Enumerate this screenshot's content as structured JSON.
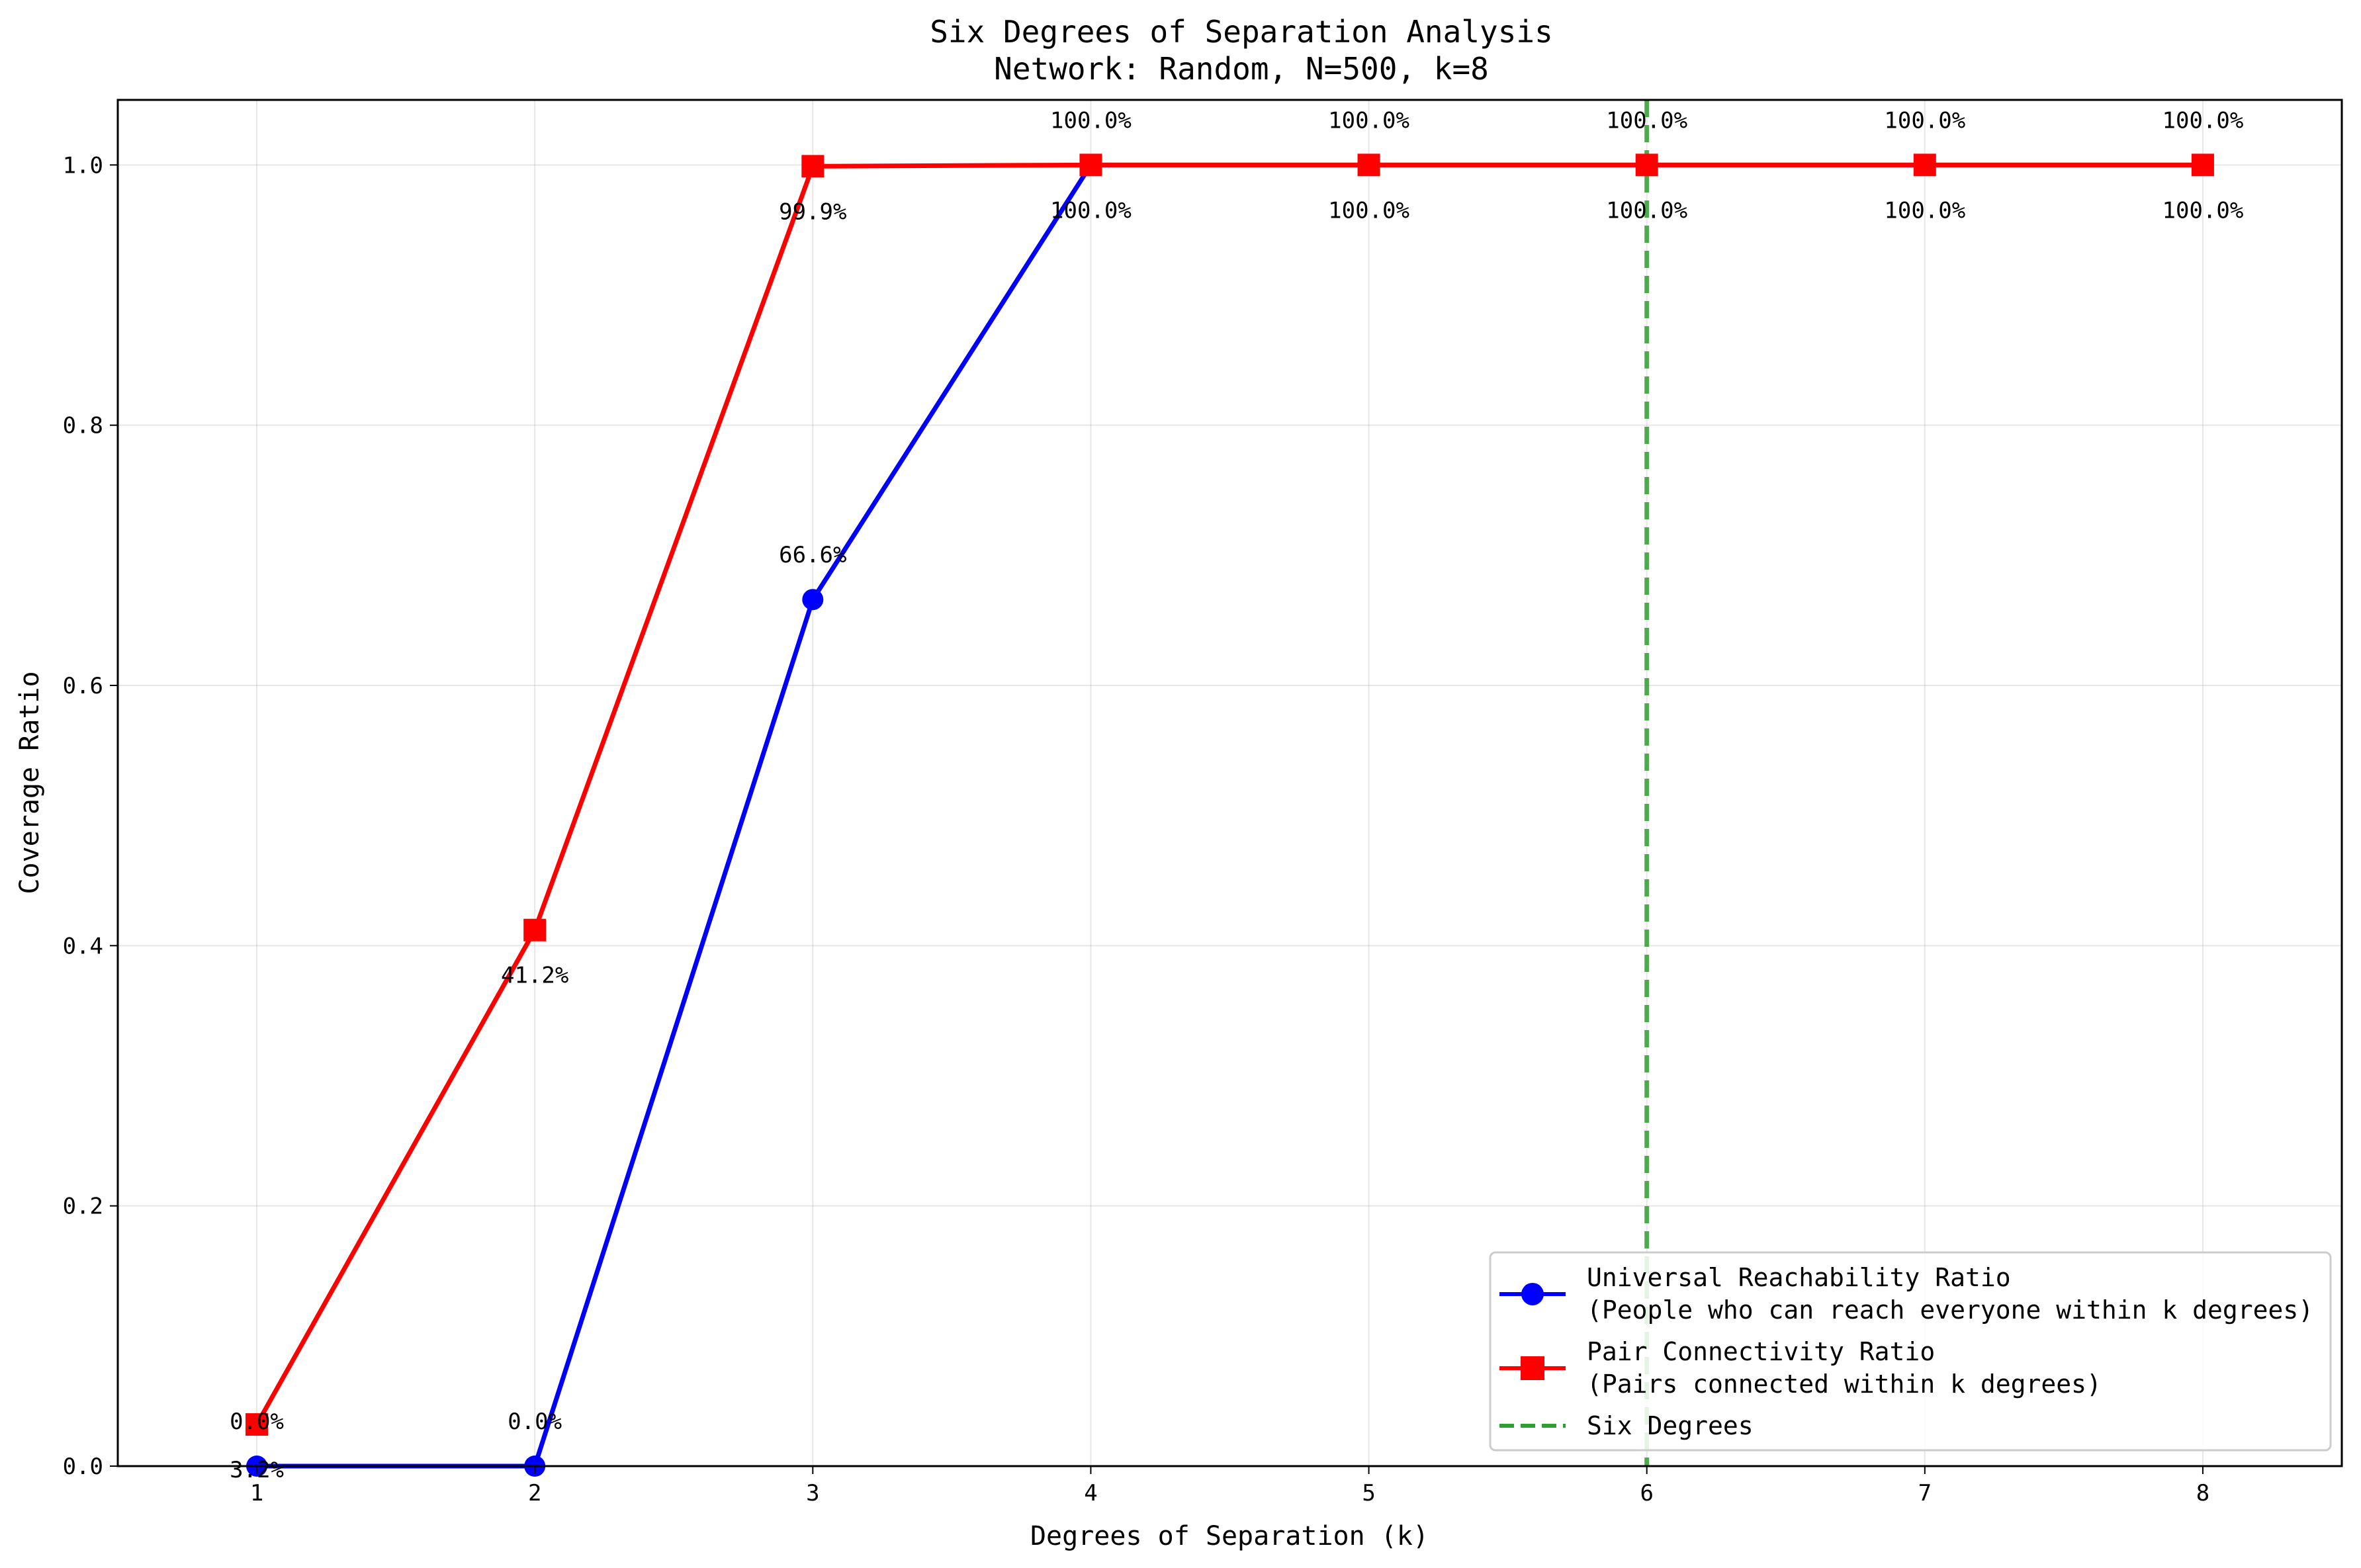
{
  "chart_data": {
    "type": "line",
    "title": "Six Degrees of Separation Analysis",
    "subtitle": "Network: Random, N=500, k=8",
    "xlabel": "Degrees of Separation (k)",
    "ylabel": "Coverage Ratio",
    "x": [
      1,
      2,
      3,
      4,
      5,
      6,
      7,
      8
    ],
    "xlim": [
      0.5,
      8.5
    ],
    "ylim": [
      0.0,
      1.05
    ],
    "x_ticks": [
      "1",
      "2",
      "3",
      "4",
      "5",
      "6",
      "7",
      "8"
    ],
    "y_ticks": [
      "0.0",
      "0.2",
      "0.4",
      "0.6",
      "0.8",
      "1.0"
    ],
    "grid": true,
    "legend_position": "lower-right",
    "series": [
      {
        "name": "Universal Reachability Ratio",
        "name_line2": "(People who can reach everyone within k degrees)",
        "color": "#0000ff",
        "marker": "circle",
        "values": [
          0.0,
          0.0,
          0.666,
          1.0,
          1.0,
          1.0,
          1.0,
          1.0
        ],
        "labels": [
          "0.0%",
          "0.0%",
          "66.6%",
          "100.0%",
          "100.0%",
          "100.0%",
          "100.0%",
          "100.0%"
        ]
      },
      {
        "name": "Pair Connectivity Ratio",
        "name_line2": "(Pairs connected within k degrees)",
        "color": "#ff0000",
        "marker": "square",
        "values": [
          0.032,
          0.412,
          0.999,
          1.0,
          1.0,
          1.0,
          1.0,
          1.0
        ],
        "labels": [
          "3.2%",
          "41.2%",
          "99.9%",
          "100.0%",
          "100.0%",
          "100.0%",
          "100.0%",
          "100.0%"
        ]
      }
    ],
    "reference_line": {
      "name": "Six Degrees",
      "x": 6,
      "color": "#2ca02c",
      "style": "dashed"
    }
  }
}
